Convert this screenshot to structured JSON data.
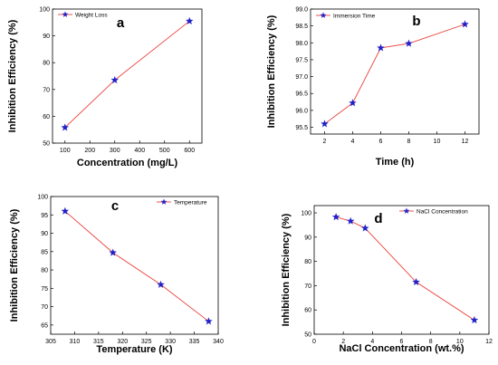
{
  "figure": {
    "background": "#ffffff"
  },
  "colors": {
    "line": "#e8403a",
    "marker": "#2020c8",
    "axis": "#000000"
  },
  "chart_data": [
    {
      "type": "line",
      "panel_label": "a",
      "xlabel": "Concentration (mg/L)",
      "ylabel": "Inhibition Efficiency (%)",
      "xlim": [
        50,
        650
      ],
      "ylim": [
        50,
        100
      ],
      "xticks": [
        100,
        200,
        300,
        400,
        500,
        600
      ],
      "yticks": [
        50,
        60,
        70,
        80,
        90,
        100
      ],
      "legend_placement": "top-left",
      "series": [
        {
          "name": "Weight Loss",
          "x": [
            100,
            300,
            600
          ],
          "y": [
            55.8,
            73.5,
            95.5
          ]
        }
      ]
    },
    {
      "type": "line",
      "panel_label": "b",
      "xlabel": "Time (h)",
      "ylabel": "Inhibition Efficiency (%)",
      "xlim": [
        1,
        13
      ],
      "ylim": [
        95.3,
        99.0
      ],
      "xticks": [
        2,
        4,
        6,
        8,
        10,
        12
      ],
      "yticks": [
        95.5,
        96.0,
        96.5,
        97.0,
        97.5,
        98.0,
        98.5,
        99.0
      ],
      "yticks_decimals": 1,
      "legend_placement": "top-left",
      "series": [
        {
          "name": "Immersion Time",
          "x": [
            2,
            4,
            6,
            8,
            12
          ],
          "y": [
            95.6,
            96.22,
            97.85,
            97.98,
            98.55
          ]
        }
      ]
    },
    {
      "type": "line",
      "panel_label": "c",
      "xlabel": "Temperature (K)",
      "ylabel": "Inhibition Efficiency (%)",
      "xlim": [
        305,
        340
      ],
      "ylim": [
        62.5,
        100
      ],
      "xticks": [
        305,
        310,
        315,
        320,
        325,
        330,
        335,
        340
      ],
      "yticks": [
        65,
        70,
        75,
        80,
        85,
        90,
        95,
        100
      ],
      "legend_placement": "top-right",
      "series": [
        {
          "name": "Temperature",
          "x": [
            308,
            318,
            328,
            338
          ],
          "y": [
            96,
            84.7,
            76,
            66
          ]
        }
      ]
    },
    {
      "type": "line",
      "panel_label": "d",
      "xlabel": "NaCl Concentration (wt.%)",
      "ylabel": "Inhibition Efficiency (%)",
      "xlim": [
        0,
        12
      ],
      "ylim": [
        50,
        103
      ],
      "xticks": [
        0,
        2,
        4,
        6,
        8,
        10,
        12
      ],
      "yticks": [
        50,
        60,
        70,
        80,
        90,
        100
      ],
      "legend_placement": "top-right",
      "series": [
        {
          "name": "NaCl Concentration",
          "x": [
            1.5,
            2.5,
            3.5,
            7,
            11
          ],
          "y": [
            98.3,
            96.6,
            93.7,
            71.5,
            55.8
          ]
        }
      ]
    }
  ]
}
